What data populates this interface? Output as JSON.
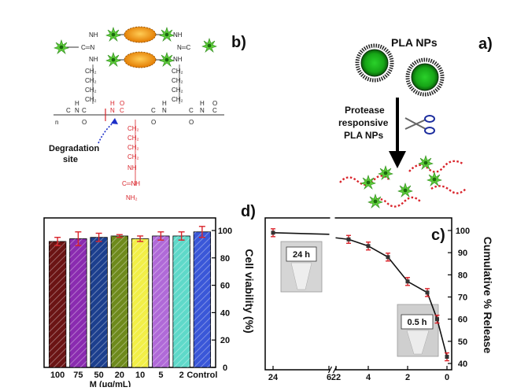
{
  "panels": {
    "a": {
      "letter": "a)",
      "title": "PLA NPs",
      "arrow_label": [
        "Protease",
        "responsive",
        "PLA NPs"
      ]
    },
    "b": {
      "letter": "b)",
      "degradation_label": [
        "Degradation",
        "site"
      ],
      "chem": {
        "nh": "NH",
        "ch2": "CH₂",
        "o": "O",
        "c": "C",
        "h": "H",
        "n": "N",
        "nh2": "NH₂",
        "cnh": "C═NH",
        "nc": "N═C",
        "cn": "C═N",
        "repeat": "n"
      }
    },
    "c": {
      "letter": "c)",
      "ylabel": "Cumulative % Release",
      "vial_early": "0.5 h",
      "vial_late": "24 h"
    },
    "d": {
      "letter": "d)",
      "ylabel": "Cell viability (%)",
      "xlabel_partial": "M (μg/mL)"
    }
  },
  "chart_data": [
    {
      "panel": "c",
      "type": "line",
      "ylabel": "Cumulative % Release",
      "ylim": [
        40,
        100
      ],
      "yticks": [
        40,
        50,
        60,
        70,
        80,
        90,
        100
      ],
      "xticks": [
        0,
        2,
        4,
        6,
        22,
        24
      ],
      "axis_break": true,
      "mirrored": true,
      "x": [
        0,
        0.5,
        1,
        2,
        3,
        4,
        5,
        24
      ],
      "y": [
        43,
        60,
        72,
        77,
        88,
        93,
        96,
        99
      ]
    },
    {
      "panel": "d",
      "type": "bar",
      "ylabel": "Cell viability (%)",
      "ylim": [
        0,
        100
      ],
      "yticks": [
        0,
        20,
        40,
        60,
        80,
        100
      ],
      "mirrored": true,
      "categories": [
        "Control",
        "2",
        "5",
        "10",
        "20",
        "50",
        "75",
        "100"
      ],
      "values": [
        99,
        96,
        96,
        94,
        96,
        95,
        94,
        92
      ],
      "errors": [
        4,
        3,
        3,
        2,
        1,
        3,
        5,
        3
      ],
      "colors": [
        "#3a57d8",
        "#5fd9c9",
        "#b06ad8",
        "#f2ef47",
        "#6e8a1c",
        "#1c3f8e",
        "#8a2bb0",
        "#6b1414"
      ]
    }
  ]
}
